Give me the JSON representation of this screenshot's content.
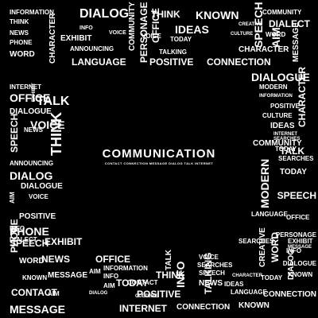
{
  "center": {
    "title": "COMMUNICATION",
    "subtitle": "CONTACT   CONNECTION   MESSAGE   DIALOG   TALK   INTERNET"
  },
  "words": [
    "INFORMATION",
    "THINK",
    "NEWS",
    "DIALOG",
    "THINK",
    "KNOWN",
    "COMMUNITY",
    "DIALECT",
    "WORD",
    "EXHIBIT",
    "INFO",
    "VOICE",
    "SPEECH",
    "IDEAS",
    "CREATIVE",
    "AIM",
    "ANNOUNCING",
    "COMMUNITY",
    "PERSONAGE",
    "OFFICE",
    "CHARACTER",
    "MESSAGE",
    "LANGUAGE",
    "POSITIVE",
    "CONNECTION",
    "PHONE",
    "WORD",
    "CHARACTER",
    "CULTURE",
    "TODAY",
    "TALKING",
    "DIALOGUE",
    "MODERN",
    "INTERNET",
    "OFFICE",
    "EXHIBIT",
    "TALK",
    "DIALOGUE",
    "INFORMATION",
    "POSITIVE",
    "CULTURE",
    "IDEAS",
    "CHARACTER",
    "VOICE",
    "SPEECH",
    "NEWS",
    "INTERNET",
    "SEARCHES",
    "TODAY",
    "THINK",
    "ANNOUNCING",
    "COMMUNITY",
    "TALK",
    "SEARCHES",
    "TODAY",
    "DIALOG",
    "SPEECH",
    "AIM",
    "DIALOGUE",
    "VOICE",
    "POSITIVE",
    "MODERN",
    "LANGUAGE",
    "OFFICE",
    "DIALECT",
    "EXHIBIT",
    "INFO",
    "PHONE",
    "MESSAGE",
    "PERSONAGE",
    "EXHIBIT",
    "INFO",
    "DIALOGUE",
    "KNOWN",
    "WORD",
    "NEWS",
    "VOICE",
    "CREATIVE",
    "OFFICE",
    "INFORMATION",
    "SEARCHES",
    "SPEECH",
    "AIM",
    "THINK",
    "TODAY",
    "NEWS",
    "PHONE",
    "SPEECH",
    "DIALOG",
    "MESSAGE",
    "CONTACT",
    "AIM",
    "IDEAS",
    "KNOWN",
    "POSITIVE",
    "INTERNET",
    "CONNECTION",
    "WORD",
    "INFO",
    "SEARCHES",
    "CONTACT",
    "TALK",
    "TODAY",
    "DIALOG",
    "CULTURE",
    "LANGUAGE",
    "CHARACTER",
    "TALKING",
    "CONNECTION",
    "MESSAGE",
    "AIM",
    "KNOWN",
    "INFO",
    "VOICE",
    "PERSONAGE"
  ]
}
